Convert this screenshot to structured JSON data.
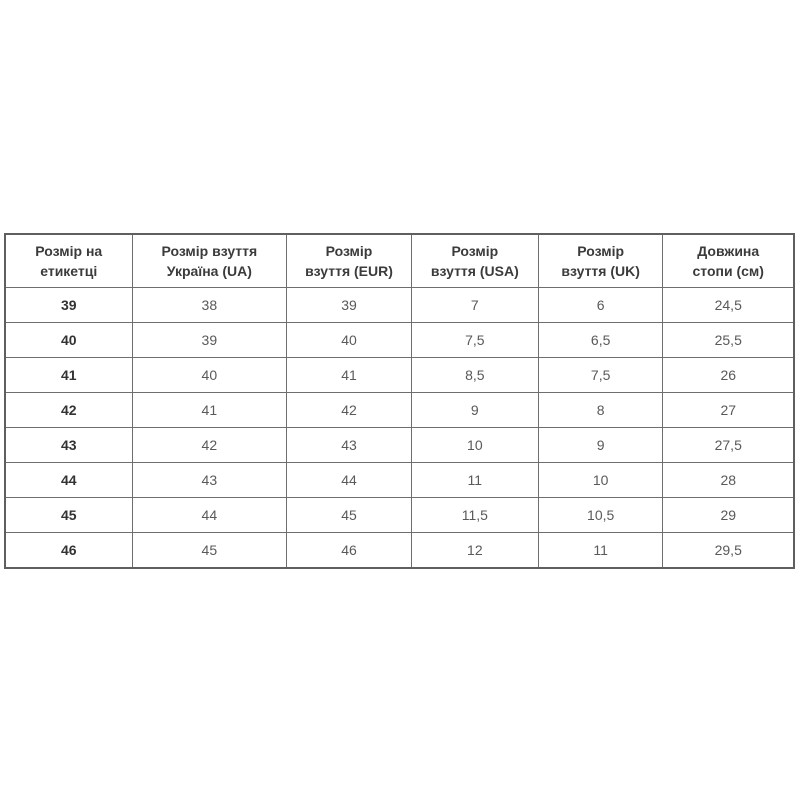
{
  "table": {
    "name": "shoe-size-conversion-chart",
    "columns": [
      {
        "label": "Розмір на\nетикетці"
      },
      {
        "label": "Розмір взуття\nУкраїна (UA)"
      },
      {
        "label": "Розмір\nвзуття (EUR)"
      },
      {
        "label": "Розмір\nвзуття (USA)"
      },
      {
        "label": "Розмір\nвзуття (UK)"
      },
      {
        "label": "Довжина\nстопи (см)"
      }
    ],
    "rows": [
      [
        "39",
        "38",
        "39",
        "7",
        "6",
        "24,5"
      ],
      [
        "40",
        "39",
        "40",
        "7,5",
        "6,5",
        "25,5"
      ],
      [
        "41",
        "40",
        "41",
        "8,5",
        "7,5",
        "26"
      ],
      [
        "42",
        "41",
        "42",
        "9",
        "8",
        "27"
      ],
      [
        "43",
        "42",
        "43",
        "10",
        "9",
        "27,5"
      ],
      [
        "44",
        "43",
        "44",
        "11",
        "10",
        "28"
      ],
      [
        "45",
        "44",
        "45",
        "11,5",
        "10,5",
        "29"
      ],
      [
        "46",
        "45",
        "46",
        "12",
        "11",
        "29,5"
      ]
    ],
    "colors": {
      "border": "#6e6e6e",
      "outer_border": "#5f5f5f",
      "header_text": "#3b3b3b",
      "label_column_text": "#333333",
      "data_text": "#595959",
      "background": "#ffffff"
    }
  }
}
